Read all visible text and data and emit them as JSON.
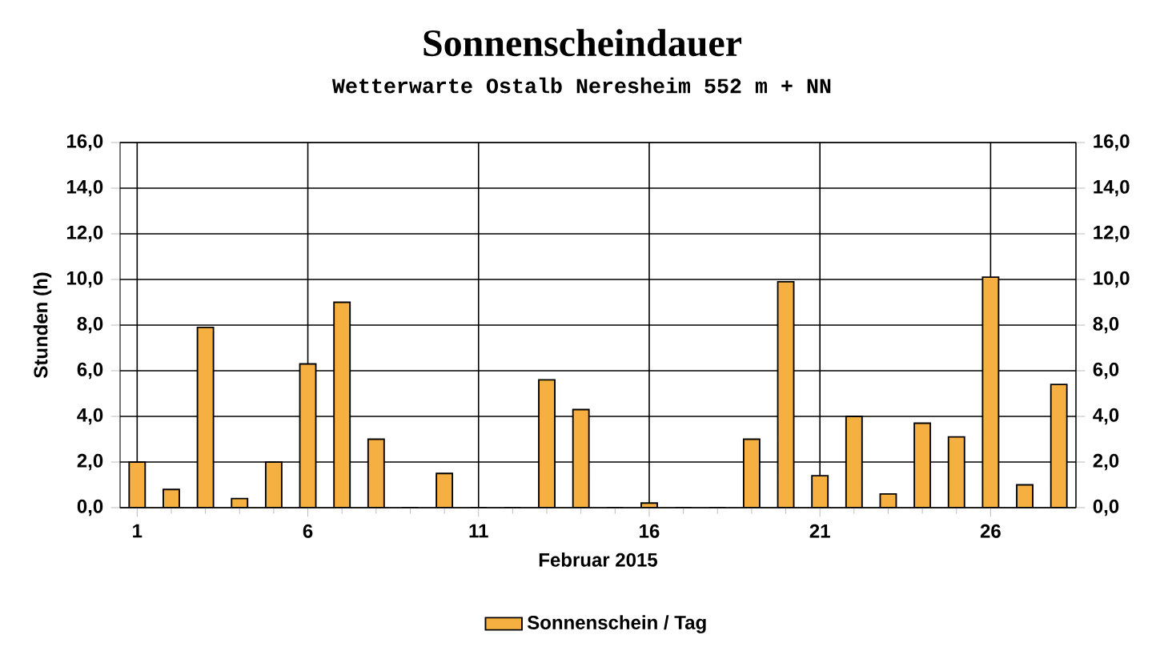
{
  "chart_data": {
    "type": "bar",
    "title": "Sonnenscheindauer",
    "subtitle": "Wetterwarte Ostalb Neresheim 552 m + NN",
    "xlabel": "Februar 2015",
    "ylabel": "Stunden  (h)",
    "x": [
      1,
      2,
      3,
      4,
      5,
      6,
      7,
      8,
      9,
      10,
      11,
      12,
      13,
      14,
      15,
      16,
      17,
      18,
      19,
      20,
      21,
      22,
      23,
      24,
      25,
      26,
      27,
      28
    ],
    "series": [
      {
        "name": "Sonnenschein / Tag",
        "color": "#f5b041",
        "values": [
          2.0,
          0.8,
          7.9,
          0.4,
          2.0,
          6.3,
          9.0,
          3.0,
          0,
          1.5,
          0,
          0,
          5.6,
          4.3,
          0,
          0.2,
          0,
          0,
          3.0,
          9.9,
          1.4,
          4.0,
          0.6,
          3.7,
          3.1,
          10.1,
          1.0,
          5.4
        ]
      }
    ],
    "xlim": [
      0.5,
      28.5
    ],
    "xticks": [
      1,
      6,
      11,
      16,
      21,
      26
    ],
    "ylim": [
      0,
      16
    ],
    "yticks": [
      {
        "value": 0,
        "label": "0,0"
      },
      {
        "value": 2,
        "label": "2,0"
      },
      {
        "value": 4,
        "label": "4,0"
      },
      {
        "value": 6,
        "label": "6,0"
      },
      {
        "value": 8,
        "label": "8,0"
      },
      {
        "value": 10,
        "label": "10,0"
      },
      {
        "value": 12,
        "label": "12,0"
      },
      {
        "value": 14,
        "label": "14,0"
      },
      {
        "value": 16,
        "label": "16,0"
      }
    ],
    "y2lim": [
      0,
      16
    ],
    "y2ticks": [
      {
        "value": 0,
        "label": "0,0"
      },
      {
        "value": 2,
        "label": "2,0"
      },
      {
        "value": 4,
        "label": "4,0"
      },
      {
        "value": 6,
        "label": "6,0"
      },
      {
        "value": 8,
        "label": "8,0"
      },
      {
        "value": 10,
        "label": "10,0"
      },
      {
        "value": 12,
        "label": "12,0"
      },
      {
        "value": 14,
        "label": "14,0"
      },
      {
        "value": 16,
        "label": "16,0"
      }
    ],
    "grid": true,
    "legend": "bottom"
  }
}
